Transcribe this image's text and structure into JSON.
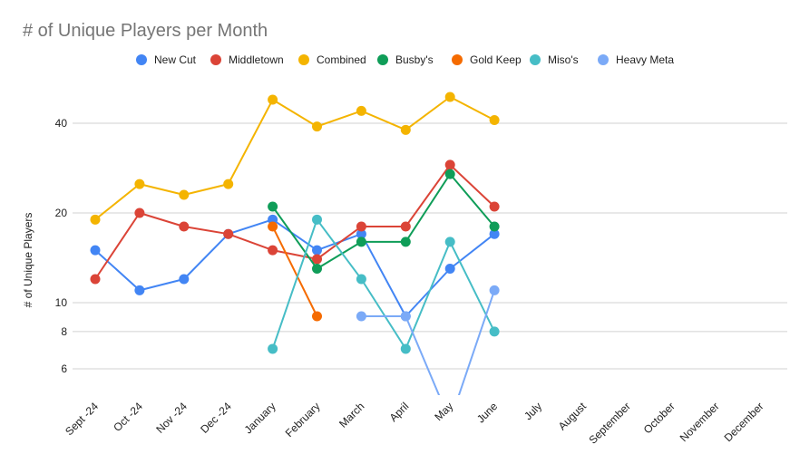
{
  "chart_data": {
    "type": "line",
    "title": "# of Unique Players per Month",
    "xlabel": "",
    "ylabel": "# of Unique Players",
    "scale": "log",
    "ylim": [
      4.7,
      52
    ],
    "yticks": [
      6,
      8,
      10,
      20,
      40
    ],
    "grid": true,
    "legend": "top",
    "categories": [
      "Sept -24",
      "Oct -24",
      "Nov -24",
      "Dec -24",
      "January",
      "February",
      "March",
      "April",
      "May",
      "June",
      "July",
      "August",
      "September",
      "October",
      "November",
      "December"
    ],
    "series": [
      {
        "name": "New Cut",
        "color": "#4285f4",
        "values": [
          15,
          11,
          12,
          17,
          19,
          15,
          17,
          9,
          13,
          17,
          null,
          null,
          null,
          null,
          null,
          null
        ]
      },
      {
        "name": "Middletown",
        "color": "#db4437",
        "values": [
          12,
          20,
          18,
          17,
          15,
          14,
          18,
          18,
          29,
          21,
          null,
          null,
          null,
          null,
          null,
          null
        ]
      },
      {
        "name": "Combined",
        "color": "#f4b400",
        "values": [
          19,
          25,
          23,
          25,
          48,
          39,
          44,
          38,
          49,
          41,
          null,
          null,
          null,
          null,
          null,
          null
        ]
      },
      {
        "name": "Busby's",
        "color": "#0f9d58",
        "values": [
          null,
          null,
          null,
          null,
          21,
          13,
          16,
          16,
          27,
          18,
          null,
          null,
          null,
          null,
          null,
          null
        ]
      },
      {
        "name": "Gold Keep",
        "color": "#f56b00",
        "values": [
          null,
          null,
          null,
          null,
          18,
          9,
          null,
          null,
          null,
          null,
          null,
          null,
          null,
          null,
          null,
          null
        ]
      },
      {
        "name": "Miso's",
        "color": "#46bdc6",
        "values": [
          null,
          null,
          null,
          null,
          7,
          19,
          12,
          7,
          16,
          8,
          null,
          null,
          null,
          null,
          null,
          null
        ]
      },
      {
        "name": "Heavy Meta",
        "color": "#7baaf7",
        "values": [
          null,
          null,
          null,
          null,
          null,
          null,
          9,
          9,
          4,
          11,
          null,
          null,
          null,
          null,
          null,
          null
        ]
      }
    ]
  }
}
